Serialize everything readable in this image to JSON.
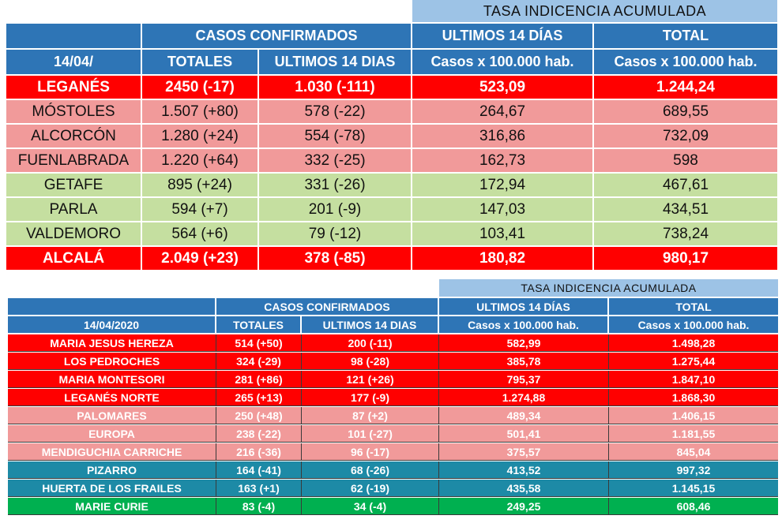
{
  "colors": {
    "header_blue": "#2e75b6",
    "light_blue": "#9dc3e6",
    "red": "#ff0000",
    "pink": "#f19a9a",
    "light_green": "#c5dfa0",
    "teal": "#1d8aa6",
    "green": "#00b050"
  },
  "table1": {
    "top_header": "TASA INDICENCIA  ACUMULADA",
    "header_row1": [
      "",
      "CASOS  CONFIRMADOS",
      "ULTIMOS 14 DÍAS",
      "TOTAL"
    ],
    "header_row2": [
      "14/04/",
      "TOTALES",
      "ULTIMOS 14 DIAS",
      "Casos x 100.000 hab.",
      "Casos x 100.000 hab."
    ],
    "rows": [
      {
        "cells": [
          "LEGANÉS",
          "2450 (-17)",
          "1.030 (-111)",
          "523,09",
          "1.244,24"
        ],
        "color": "red",
        "bold": true
      },
      {
        "cells": [
          "MÓSTOLES",
          "1.507 (+80)",
          "578 (-22)",
          "264,67",
          "689,55"
        ],
        "color": "pink",
        "bold": false
      },
      {
        "cells": [
          "ALCORCÓN",
          "1.280 (+24)",
          "554 (-78)",
          "316,86",
          "732,09"
        ],
        "color": "pink",
        "bold": false
      },
      {
        "cells": [
          "FUENLABRADA",
          "1.220 (+64)",
          "332 (-25)",
          "162,73",
          "598"
        ],
        "color": "pink",
        "bold": false
      },
      {
        "cells": [
          "GETAFE",
          "895 (+24)",
          "331 (-26)",
          "172,94",
          "467,61"
        ],
        "color": "light_green",
        "bold": false
      },
      {
        "cells": [
          "PARLA",
          "594 (+7)",
          "201 (-9)",
          "147,03",
          "434,51"
        ],
        "color": "light_green",
        "bold": false
      },
      {
        "cells": [
          "VALDEMORO",
          "564 (+6)",
          "79 (-12)",
          "103,41",
          "738,24"
        ],
        "color": "light_green",
        "bold": false
      },
      {
        "cells": [
          "ALCALÁ",
          "2.049 (+23)",
          "378 (-85)",
          "180,82",
          "980,17"
        ],
        "color": "red",
        "bold": true
      }
    ]
  },
  "table2": {
    "top_header": "TASA INDICENCIA  ACUMULADA",
    "header_row1": [
      "",
      "CASOS  CONFIRMADOS",
      "ULTIMOS 14 DÍAS",
      "TOTAL"
    ],
    "header_row2": [
      "14/04/2020",
      "TOTALES",
      "ULTIMOS 14 DIAS",
      "Casos x 100.000 hab.",
      "Casos x 100.000 hab."
    ],
    "rows": [
      {
        "cells": [
          "MARIA JESUS HEREZA",
          "514 (+50)",
          "200 (-11)",
          "582,99",
          "1.498,28"
        ],
        "color": "red"
      },
      {
        "cells": [
          "LOS PEDROCHES",
          "324 (-29)",
          "98 (-28)",
          "385,78",
          "1.275,44"
        ],
        "color": "red"
      },
      {
        "cells": [
          "MARIA MONTESORI",
          "281 (+86)",
          "121 (+26)",
          "795,37",
          "1.847,10"
        ],
        "color": "red"
      },
      {
        "cells": [
          "LEGANÉS NORTE",
          "265 (+13)",
          "177 (-9)",
          "1.274,88",
          "1.868,30"
        ],
        "color": "red"
      },
      {
        "cells": [
          "PALOMARES",
          "250 (+48)",
          "87 (+2)",
          "489,34",
          "1.406,15"
        ],
        "color": "pink"
      },
      {
        "cells": [
          "EUROPA",
          "238 (-22)",
          "101 (-27)",
          "501,41",
          "1.181,55"
        ],
        "color": "pink"
      },
      {
        "cells": [
          "MENDIGUCHIA CARRICHE",
          "216 (-36)",
          "96 (-17)",
          "375,57",
          "845,04"
        ],
        "color": "pink"
      },
      {
        "cells": [
          "PIZARRO",
          "164 (-41)",
          "68 (-26)",
          "413,52",
          "997,32"
        ],
        "color": "teal"
      },
      {
        "cells": [
          "HUERTA DE LOS FRAILES",
          "163 (+1)",
          "62 (-19)",
          "435,58",
          "1.145,15"
        ],
        "color": "teal"
      },
      {
        "cells": [
          "MARIE CURIE",
          "83 (-4)",
          "34 (-4)",
          "249,25",
          "608,46"
        ],
        "color": "green"
      }
    ]
  }
}
